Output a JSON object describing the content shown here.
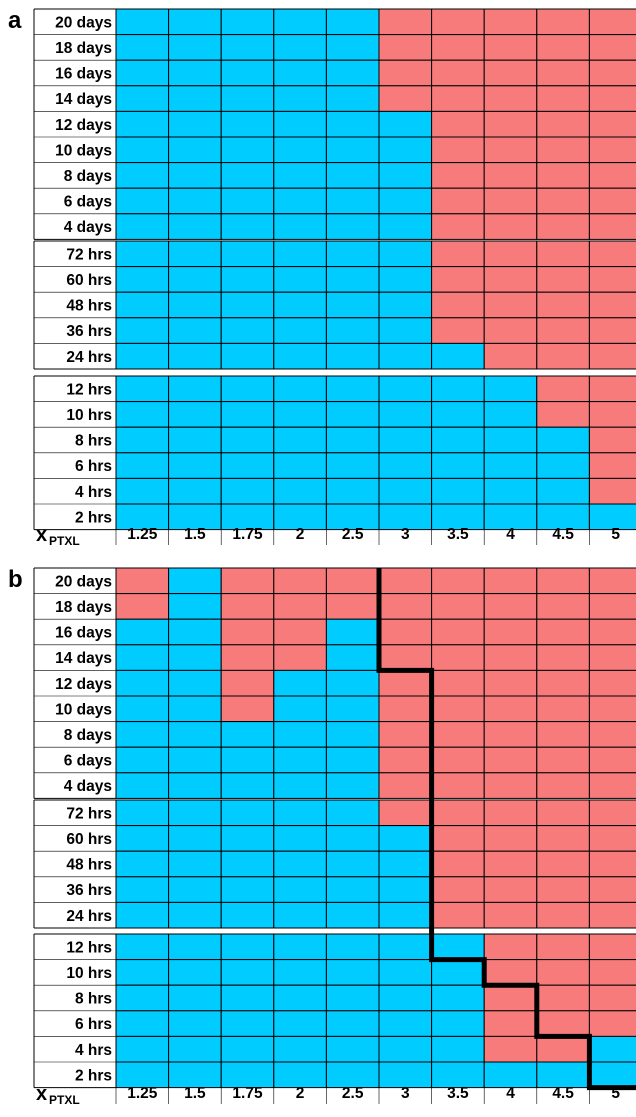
{
  "colors": {
    "blue": "#00ccff",
    "red": "#f77b7b",
    "grid": "#000000",
    "background": "#ffffff",
    "text": "#000000"
  },
  "chart_data": [
    {
      "type": "heatmap",
      "panel_label": "a",
      "x_label_main": "x",
      "x_label_sub": "PTXL",
      "x_ticks": [
        "1.25",
        "1.5",
        "1.75",
        "2",
        "2.5",
        "3",
        "3.5",
        "4",
        "4.5",
        "5"
      ],
      "groups": [
        {
          "rows": [
            "20 days",
            "18 days",
            "16 days",
            "14 days",
            "12 days",
            "10 days",
            "8 days",
            "6 days",
            "4 days"
          ],
          "cells": [
            "BBBBBRRRRR",
            "BBBBBRRRRR",
            "BBBBBRRRRR",
            "BBBBBRRRRR",
            "BBBBBBRRRR",
            "BBBBBBRRRR",
            "BBBBBBRRRR",
            "BBBBBBRRRR",
            "BBBBBBRRRR"
          ]
        },
        {
          "rows": [
            "72 hrs",
            "60 hrs",
            "48 hrs",
            "36 hrs",
            "24 hrs"
          ],
          "cells": [
            "BBBBBBRRRR",
            "BBBBBBRRRR",
            "BBBBBBRRRR",
            "BBBBBBRRRR",
            "BBBBBBBRRR"
          ]
        },
        {
          "rows": [
            "12 hrs",
            "10 hrs",
            "8 hrs",
            "6 hrs",
            "4 hrs",
            "2 hrs"
          ],
          "cells": [
            "BBBBBBBBRR",
            "BBBBBBBBRR",
            "BBBBBBBBBR",
            "BBBBBBBBBR",
            "BBBBBBBBBR",
            "BBBBBBBBBB"
          ]
        }
      ],
      "boundary_line": null
    },
    {
      "type": "heatmap",
      "panel_label": "b",
      "x_label_main": "x",
      "x_label_sub": "PTXL",
      "x_ticks": [
        "1.25",
        "1.5",
        "1.75",
        "2",
        "2.5",
        "3",
        "3.5",
        "4",
        "4.5",
        "5"
      ],
      "groups": [
        {
          "rows": [
            "20 days",
            "18 days",
            "16 days",
            "14 days",
            "12 days",
            "10 days",
            "8 days",
            "6 days",
            "4 days"
          ],
          "cells": [
            "RBRRRRRRRR",
            "RBRRRRRRRR",
            "BBRRBRRRRR",
            "BBRRBRRRRR",
            "BBRBBRRRRR",
            "BBRBBRRRRR",
            "BBBBBRRRRR",
            "BBBBBRRRRR",
            "BBBBBRRRRR"
          ]
        },
        {
          "rows": [
            "72 hrs",
            "60 hrs",
            "48 hrs",
            "36 hrs",
            "24 hrs"
          ],
          "cells": [
            "BBBBBRRRRR",
            "BBBBBBRRRR",
            "BBBBBBRRRR",
            "BBBBBBRRRR",
            "BBBBBBRRRR"
          ]
        },
        {
          "rows": [
            "12 hrs",
            "10 hrs",
            "8 hrs",
            "6 hrs",
            "4 hrs",
            "2 hrs"
          ],
          "cells": [
            "BBBBBBBRRR",
            "BBBBBBBRRR",
            "BBBBBBBRRR",
            "BBBBBBBRRR",
            "BBBBBBBRRB",
            "BBBBBBBBBB"
          ]
        }
      ],
      "boundary_line": [
        [
          5,
          0
        ],
        [
          5,
          4
        ],
        [
          6,
          4
        ],
        [
          6,
          15
        ],
        [
          7,
          15
        ],
        [
          7,
          16
        ],
        [
          8,
          16
        ],
        [
          8,
          18
        ],
        [
          9,
          18
        ],
        [
          9,
          20
        ],
        [
          10,
          20
        ]
      ]
    }
  ]
}
